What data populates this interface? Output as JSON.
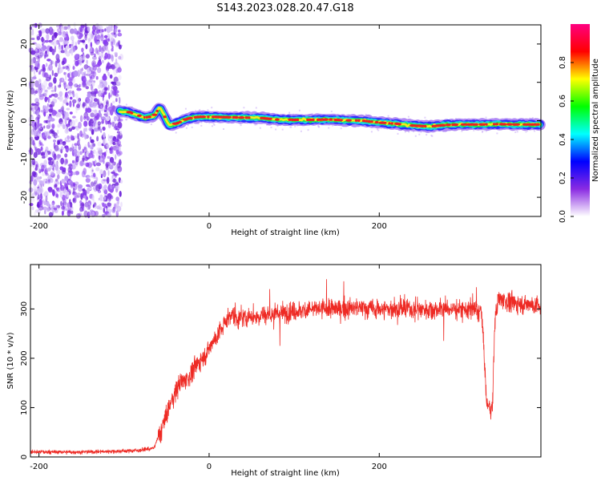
{
  "title": "S143.2023.028.20.47.G18",
  "chart_data": [
    {
      "type": "heatmap",
      "xlabel": "Height of straight line (km)",
      "ylabel": "Frequency (Hz)",
      "xlim": [
        -210,
        390
      ],
      "ylim": [
        -25,
        25
      ],
      "x_ticks": [
        -200,
        0,
        200
      ],
      "y_ticks": [
        -20,
        -10,
        0,
        10,
        20
      ],
      "grid": false,
      "colorbar": {
        "label": "Normalized spectral amplitude",
        "range": [
          0,
          1
        ],
        "ticks": [
          0.0,
          0.2,
          0.4,
          0.6,
          0.8
        ],
        "colormap": [
          "#ffffff",
          "#8a2be2",
          "#0000ff",
          "#00ffff",
          "#00ff00",
          "#ffff00",
          "#ff0000",
          "#ff0080"
        ]
      },
      "noise_region_x": [
        -210,
        -103
      ],
      "frequency_trace": {
        "x": [
          -105,
          -95,
          -85,
          -75,
          -65,
          -58,
          -52,
          -48,
          -44,
          -40,
          -35,
          -30,
          -20,
          -10,
          0,
          20,
          40,
          60,
          80,
          100,
          120,
          140,
          160,
          180,
          200,
          220,
          240,
          260,
          280,
          300,
          320,
          340,
          360,
          390
        ],
        "y": [
          2.5,
          2.3,
          1.5,
          0.8,
          1.2,
          3.5,
          1.0,
          -1.0,
          -1.2,
          -0.8,
          -0.5,
          0.2,
          0.8,
          1.0,
          1.0,
          0.9,
          0.8,
          0.7,
          0.3,
          0.2,
          0.2,
          0.3,
          0.1,
          0.0,
          -0.5,
          -0.8,
          -1.3,
          -1.5,
          -1.1,
          -1.0,
          -1.0,
          -0.9,
          -1.0,
          -1.0
        ],
        "peak_amplitude": 0.95
      }
    },
    {
      "type": "line",
      "xlabel": "Height of straight line (km)",
      "ylabel": "SNR (10 * v/v)",
      "xlim": [
        -210,
        390
      ],
      "ylim": [
        0,
        390
      ],
      "x_ticks": [
        -200,
        0,
        200
      ],
      "y_ticks": [
        0,
        100,
        200,
        300
      ],
      "grid": false,
      "series": [
        {
          "color": "#ee2a24",
          "x": [
            -210,
            -150,
            -100,
            -80,
            -65,
            -55,
            -45,
            -35,
            -25,
            -15,
            -5,
            5,
            15,
            25,
            35,
            50,
            75,
            100,
            125,
            150,
            175,
            200,
            225,
            250,
            275,
            300,
            320,
            323,
            326,
            330,
            333,
            336,
            340,
            345,
            360,
            375,
            390
          ],
          "y": [
            10,
            10,
            12,
            14,
            18,
            60,
            110,
            150,
            160,
            185,
            205,
            235,
            260,
            290,
            280,
            285,
            290,
            295,
            300,
            300,
            302,
            300,
            300,
            300,
            300,
            300,
            295,
            220,
            110,
            100,
            100,
            280,
            320,
            320,
            310,
            310,
            305
          ]
        }
      ]
    }
  ]
}
